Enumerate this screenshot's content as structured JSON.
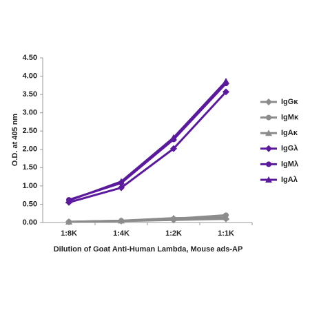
{
  "chart_data": {
    "type": "line",
    "y_label": "O.D. at 405 nm",
    "x_label": "Dilution of Goat Anti-Human Lambda, Mouse ads-AP",
    "categories": [
      "1:8K",
      "1:4K",
      "1:2K",
      "1:1K"
    ],
    "ylim": [
      0,
      4.5
    ],
    "yticks": [
      {
        "value": 0,
        "label": "0.00"
      },
      {
        "value": 0.5,
        "label": "0.50"
      },
      {
        "value": 1,
        "label": "1.00"
      },
      {
        "value": 1.5,
        "label": "1.50"
      },
      {
        "value": 2,
        "label": "2.00"
      },
      {
        "value": 2.5,
        "label": "2.50"
      },
      {
        "value": 3,
        "label": "3.00"
      },
      {
        "value": 3.5,
        "label": "3.50"
      },
      {
        "value": 4,
        "label": "4.00"
      },
      {
        "value": 4.5,
        "label": "4.50"
      }
    ],
    "grid": false,
    "legend": "right",
    "series": [
      {
        "name": "IgGκ",
        "color": "#8c8c8c",
        "marker": "diamond",
        "values": [
          0.02,
          0.04,
          0.07,
          0.1
        ]
      },
      {
        "name": "IgMκ",
        "color": "#8c8c8c",
        "marker": "circle",
        "values": [
          0.02,
          0.05,
          0.1,
          0.2
        ]
      },
      {
        "name": "IgAκ",
        "color": "#8c8c8c",
        "marker": "triangle",
        "values": [
          0.02,
          0.05,
          0.12,
          0.14
        ]
      },
      {
        "name": "IgGλ",
        "color": "#5b1a9e",
        "marker": "diamond",
        "values": [
          0.55,
          0.95,
          2.02,
          3.57
        ]
      },
      {
        "name": "IgMλ",
        "color": "#5b1a9e",
        "marker": "circle",
        "values": [
          0.62,
          1.08,
          2.27,
          3.8
        ]
      },
      {
        "name": "IgAλ",
        "color": "#5b1a9e",
        "marker": "triangle",
        "values": [
          0.6,
          1.12,
          2.32,
          3.86
        ]
      }
    ]
  }
}
